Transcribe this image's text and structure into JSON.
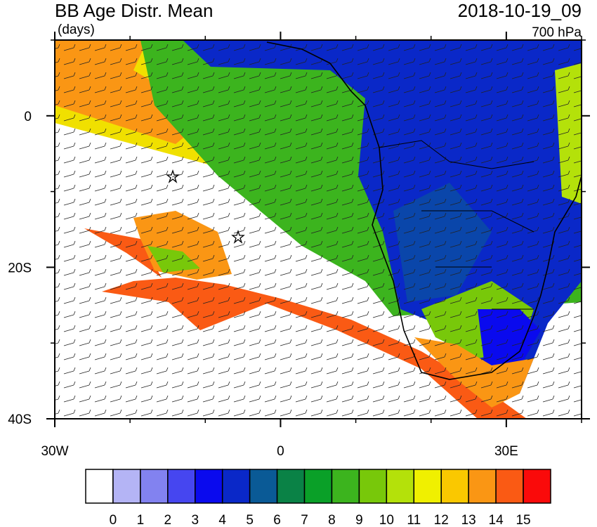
{
  "title": "BB Age Distr. Mean",
  "units": "(days)",
  "date": "2018-10-19_09",
  "level": "700 hPa",
  "map": {
    "lonlim": [
      -30,
      40
    ],
    "latlim": [
      10,
      -40
    ],
    "lon_ticks": [
      {
        "value": -30,
        "label": "30W"
      },
      0,
      {
        "value": 30,
        "label": "30E"
      }
    ],
    "lat_ticks": [
      0,
      {
        "value": -20,
        "label": "20S"
      },
      {
        "value": -40,
        "label": "40S"
      }
    ],
    "lon_minor_ticks": [
      -20,
      -10,
      10,
      20,
      40
    ],
    "lat_minor_ticks": [
      10,
      -10,
      -30
    ]
  },
  "colorbar": {
    "levels": [
      0,
      1,
      2,
      3,
      4,
      5,
      6,
      7,
      8,
      9,
      10,
      11,
      12,
      13,
      14,
      15
    ],
    "colors": [
      "#ffffff",
      "#b4b4f5",
      "#8282f0",
      "#4646f0",
      "#0a0aee",
      "#0a28c8",
      "#0a5a96",
      "#0a8246",
      "#0aa028",
      "#3cb41e",
      "#78c80a",
      "#b4e10a",
      "#f0f000",
      "#fac800",
      "#fa9614",
      "#fa5a14",
      "#fa0a0a"
    ]
  }
}
